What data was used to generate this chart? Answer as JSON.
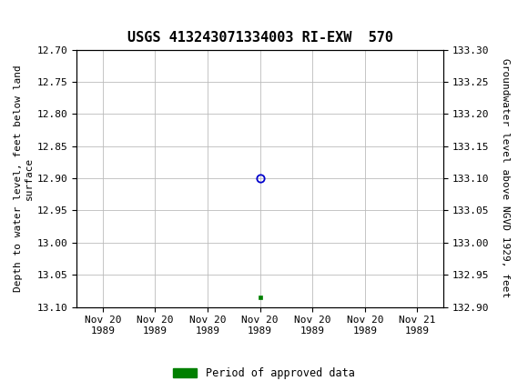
{
  "title": "USGS 413243071334003 RI-EXW  570",
  "ylabel_left": "Depth to water level, feet below land\nsurface",
  "ylabel_right": "Groundwater level above NGVD 1929, feet",
  "ylim_left": [
    13.1,
    12.7
  ],
  "ylim_right": [
    132.9,
    133.3
  ],
  "yticks_left": [
    12.7,
    12.75,
    12.8,
    12.85,
    12.9,
    12.95,
    13.0,
    13.05,
    13.1
  ],
  "yticks_right": [
    133.3,
    133.25,
    133.2,
    133.15,
    133.1,
    133.05,
    133.0,
    132.95,
    132.9
  ],
  "xlim": [
    -0.5,
    6.5
  ],
  "xtick_positions": [
    0,
    1,
    2,
    3,
    4,
    5,
    6
  ],
  "xtick_labels": [
    "Nov 20\n1989",
    "Nov 20\n1989",
    "Nov 20\n1989",
    "Nov 20\n1989",
    "Nov 20\n1989",
    "Nov 20\n1989",
    "Nov 21\n1989"
  ],
  "circle_point_x": 3,
  "circle_point_y": 12.9,
  "square_point_x": 3,
  "square_point_y": 13.085,
  "circle_color": "#0000cc",
  "square_color": "#008000",
  "grid_color": "#bbbbbb",
  "bg_color": "#ffffff",
  "header_color": "#1a6b3c",
  "legend_label": "Period of approved data",
  "legend_color": "#008000",
  "title_fontsize": 11,
  "axis_fontsize": 8,
  "tick_fontsize": 8,
  "font_family": "DejaVu Sans Mono"
}
